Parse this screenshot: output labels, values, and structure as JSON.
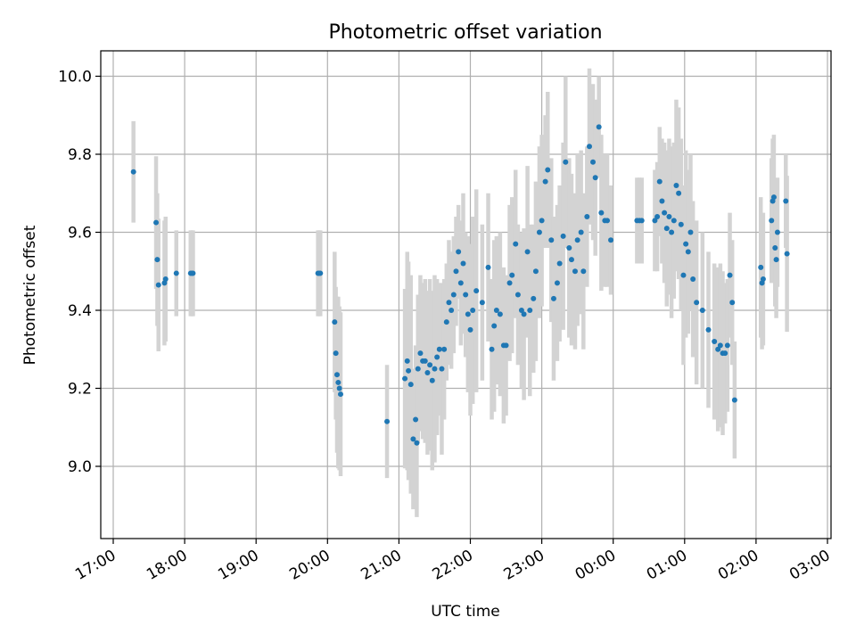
{
  "chart_data": {
    "type": "scatter",
    "title": "Photometric offset variation",
    "xlabel": "UTC time",
    "ylabel": "Photometric offset",
    "x_tick_labels": [
      "17:00",
      "18:00",
      "19:00",
      "20:00",
      "21:00",
      "22:00",
      "23:00",
      "00:00",
      "01:00",
      "02:00",
      "03:00"
    ],
    "y_tick_labels": [
      "9.0",
      "9.2",
      "9.4",
      "9.6",
      "9.8",
      "10.0"
    ],
    "y_ticks": [
      9.0,
      9.2,
      9.4,
      9.6,
      9.8,
      10.0
    ],
    "xlim": [
      "17:00",
      "03:00"
    ],
    "ylim": [
      8.81,
      10.06
    ],
    "grid": true,
    "colors": {
      "points": "#1f77b4",
      "errorbars": "#d3d3d3",
      "grid": "#b0b0b0",
      "axes": "#000000"
    },
    "series": [
      {
        "x": [
          "17:17",
          "17:36",
          "17:37",
          "17:38",
          "17:43",
          "17:44",
          "17:53",
          "18:05",
          "18:06",
          "18:07",
          "19:52",
          "19:53",
          "19:54",
          "20:06",
          "20:07",
          "20:08",
          "20:09",
          "20:10",
          "20:11",
          "20:50",
          "21:05",
          "21:07",
          "21:08",
          "21:10",
          "21:12",
          "21:14",
          "21:15",
          "21:16",
          "21:18",
          "21:20",
          "21:22",
          "21:24",
          "21:26",
          "21:28",
          "21:30",
          "21:32",
          "21:34",
          "21:36",
          "21:38",
          "21:40",
          "21:42",
          "21:44",
          "21:46",
          "21:48",
          "21:50",
          "21:52",
          "21:54",
          "21:56",
          "21:58",
          "22:00",
          "22:02",
          "22:05",
          "22:10",
          "22:15",
          "22:18",
          "22:20",
          "22:22",
          "22:25",
          "22:28",
          "22:30",
          "22:33",
          "22:35",
          "22:38",
          "22:40",
          "22:43",
          "22:45",
          "22:48",
          "22:50",
          "22:53",
          "22:55",
          "22:58",
          "23:00",
          "23:03",
          "23:05",
          "23:08",
          "23:10",
          "23:13",
          "23:15",
          "23:18",
          "23:20",
          "23:23",
          "23:25",
          "23:28",
          "23:30",
          "23:33",
          "23:35",
          "23:38",
          "23:40",
          "23:43",
          "23:45",
          "23:48",
          "23:50",
          "23:53",
          "23:55",
          "23:58",
          "00:20",
          "00:22",
          "00:24",
          "00:35",
          "00:37",
          "00:39",
          "00:41",
          "00:43",
          "00:45",
          "00:47",
          "00:49",
          "00:51",
          "00:53",
          "00:55",
          "00:57",
          "00:59",
          "01:01",
          "01:03",
          "01:05",
          "01:07",
          "01:10",
          "01:15",
          "01:20",
          "01:25",
          "01:28",
          "01:30",
          "01:32",
          "01:34",
          "01:36",
          "01:38",
          "01:40",
          "01:42",
          "02:04",
          "02:05",
          "02:06",
          "02:13",
          "02:14",
          "02:15",
          "02:16",
          "02:17",
          "02:18",
          "02:25",
          "02:26"
        ],
        "y": [
          9.755,
          9.625,
          9.53,
          9.465,
          9.47,
          9.48,
          9.495,
          9.495,
          9.495,
          9.495,
          9.495,
          9.495,
          9.495,
          9.37,
          9.29,
          9.235,
          9.215,
          9.2,
          9.185,
          9.115,
          9.225,
          9.27,
          9.245,
          9.21,
          9.07,
          9.12,
          9.06,
          9.25,
          9.29,
          9.27,
          9.27,
          9.24,
          9.26,
          9.22,
          9.25,
          9.28,
          9.3,
          9.25,
          9.3,
          9.37,
          9.42,
          9.4,
          9.44,
          9.5,
          9.55,
          9.47,
          9.52,
          9.44,
          9.39,
          9.35,
          9.4,
          9.45,
          9.42,
          9.51,
          9.3,
          9.36,
          9.4,
          9.39,
          9.31,
          9.31,
          9.47,
          9.49,
          9.57,
          9.44,
          9.4,
          9.39,
          9.55,
          9.4,
          9.43,
          9.5,
          9.6,
          9.63,
          9.73,
          9.76,
          9.58,
          9.43,
          9.47,
          9.52,
          9.59,
          9.78,
          9.56,
          9.53,
          9.5,
          9.58,
          9.6,
          9.5,
          9.64,
          9.82,
          9.78,
          9.74,
          9.87,
          9.65,
          9.63,
          9.63,
          9.58,
          9.63,
          9.63,
          9.63,
          9.63,
          9.64,
          9.73,
          9.68,
          9.65,
          9.61,
          9.64,
          9.6,
          9.63,
          9.72,
          9.7,
          9.62,
          9.49,
          9.57,
          9.55,
          9.6,
          9.48,
          9.42,
          9.4,
          9.35,
          9.32,
          9.3,
          9.31,
          9.29,
          9.29,
          9.31,
          9.49,
          9.42,
          9.17,
          9.51,
          9.47,
          9.48,
          9.63,
          9.68,
          9.69,
          9.56,
          9.53,
          9.6,
          9.68,
          9.545
        ],
        "err": [
          0.13,
          0.17,
          0.17,
          0.17,
          0.16,
          0.16,
          0.11,
          0.11,
          0.11,
          0.11,
          0.11,
          0.11,
          0.11,
          0.18,
          0.17,
          0.2,
          0.22,
          0.21,
          0.21,
          0.145,
          0.23,
          0.28,
          0.28,
          0.28,
          0.18,
          0.19,
          0.19,
          0.19,
          0.2,
          0.2,
          0.21,
          0.21,
          0.22,
          0.23,
          0.24,
          0.2,
          0.17,
          0.22,
          0.18,
          0.15,
          0.16,
          0.15,
          0.15,
          0.14,
          0.12,
          0.16,
          0.18,
          0.16,
          0.2,
          0.22,
          0.24,
          0.26,
          0.2,
          0.19,
          0.18,
          0.22,
          0.19,
          0.21,
          0.2,
          0.18,
          0.2,
          0.2,
          0.19,
          0.18,
          0.2,
          0.22,
          0.22,
          0.22,
          0.19,
          0.23,
          0.22,
          0.22,
          0.17,
          0.2,
          0.21,
          0.21,
          0.2,
          0.2,
          0.24,
          0.22,
          0.23,
          0.22,
          0.2,
          0.22,
          0.21,
          0.2,
          0.18,
          0.2,
          0.2,
          0.2,
          0.13,
          0.2,
          0.17,
          0.17,
          0.14,
          0.11,
          0.11,
          0.11,
          0.13,
          0.14,
          0.14,
          0.16,
          0.18,
          0.2,
          0.2,
          0.22,
          0.2,
          0.22,
          0.22,
          0.22,
          0.23,
          0.24,
          0.21,
          0.2,
          0.2,
          0.21,
          0.2,
          0.2,
          0.2,
          0.21,
          0.21,
          0.21,
          0.18,
          0.17,
          0.16,
          0.16,
          0.15,
          0.18,
          0.17,
          0.17,
          0.16,
          0.16,
          0.16,
          0.15,
          0.15,
          0.14,
          0.12,
          0.2
        ]
      }
    ]
  }
}
